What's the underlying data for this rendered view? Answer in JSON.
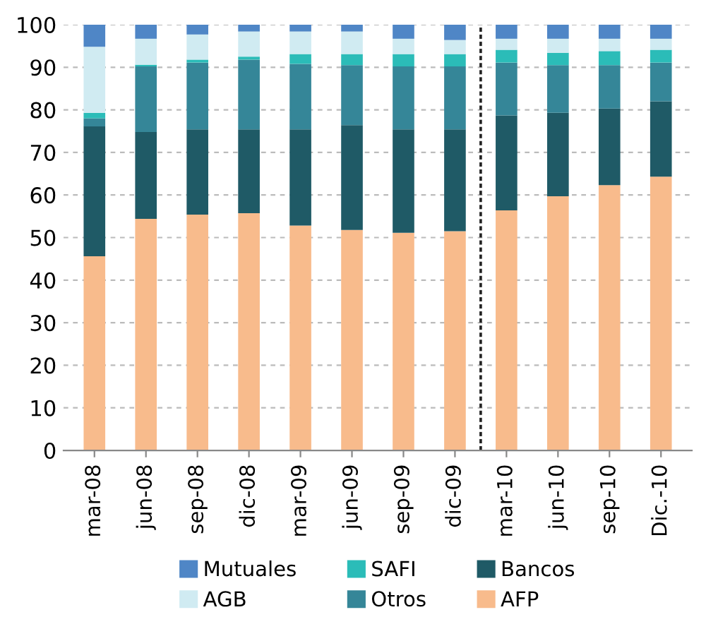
{
  "chart_data": {
    "type": "bar",
    "stacked": true,
    "categories": [
      "mar-08",
      "jun-08",
      "sep-08",
      "dic-08",
      "mar-09",
      "jun-09",
      "sep-09",
      "dic-09",
      "mar-10",
      "jun-10",
      "sep-10",
      "Dic.-10"
    ],
    "series": [
      {
        "name": "AFP",
        "color": "#f8bb8c",
        "values": [
          45.6,
          54.4,
          55.4,
          55.7,
          52.8,
          51.8,
          51.1,
          51.5,
          56.4,
          59.7,
          62.3,
          64.3
        ]
      },
      {
        "name": "Bancos",
        "color": "#1f5a66",
        "values": [
          30.5,
          20.4,
          20.0,
          19.7,
          22.6,
          24.6,
          24.3,
          23.9,
          22.3,
          19.6,
          18.0,
          17.7
        ]
      },
      {
        "name": "Otros",
        "color": "#358698",
        "values": [
          1.9,
          15.4,
          15.7,
          16.4,
          15.4,
          14.1,
          14.8,
          14.8,
          12.4,
          11.2,
          10.2,
          9.1
        ]
      },
      {
        "name": "SAFI",
        "color": "#2bbcb8",
        "values": [
          1.3,
          0.4,
          0.7,
          0.7,
          2.3,
          2.6,
          2.9,
          2.9,
          3.0,
          2.9,
          3.3,
          3.0
        ]
      },
      {
        "name": "AGB",
        "color": "#d0ebf2",
        "values": [
          15.5,
          6.1,
          5.9,
          5.9,
          5.3,
          5.3,
          3.6,
          3.3,
          2.6,
          3.3,
          2.9,
          2.6
        ]
      },
      {
        "name": "Mutuales",
        "color": "#4f86c6",
        "values": [
          5.2,
          3.3,
          2.3,
          1.6,
          1.6,
          1.6,
          3.3,
          3.6,
          3.3,
          3.3,
          3.3,
          3.3
        ]
      }
    ],
    "ylim": [
      0,
      100
    ],
    "yticks": [
      0,
      10,
      20,
      30,
      40,
      50,
      60,
      70,
      80,
      90,
      100
    ],
    "grid": "y",
    "legend": "bottom"
  }
}
